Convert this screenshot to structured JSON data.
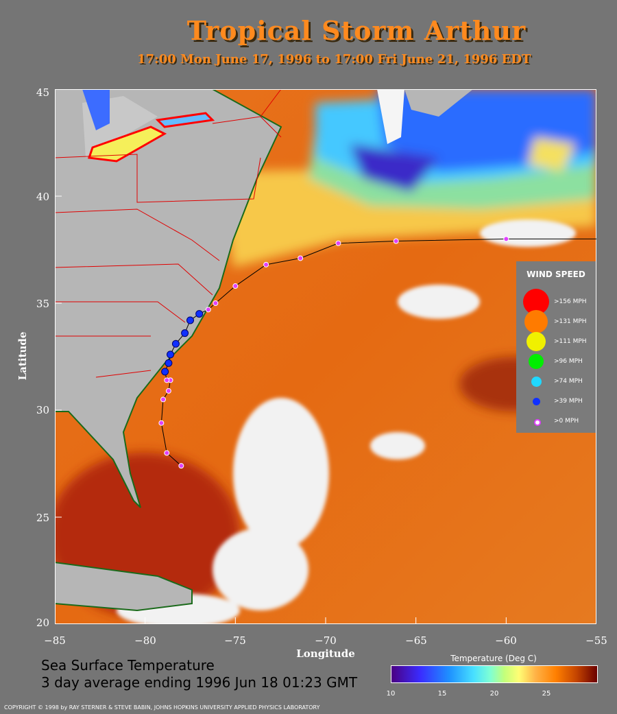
{
  "title": "Tropical Storm Arthur",
  "subtitle": "17:00 Mon June 17, 1996 to 17:00 Fri June 21, 1996  EDT",
  "axes": {
    "xlabel": "Longitude",
    "ylabel": "Latitude",
    "lat_ticks": [
      "45",
      "40",
      "35",
      "30",
      "25",
      "20"
    ],
    "lon_ticks": [
      "−85",
      "−80",
      "−75",
      "−70",
      "−65",
      "−60",
      "−55"
    ]
  },
  "legend": {
    "title": "WIND SPEED",
    "items": [
      {
        "label": ">156 MPH",
        "color": "#ff0000"
      },
      {
        "label": ">131 MPH",
        "color": "#ff7b00"
      },
      {
        "label": ">111 MPH",
        "color": "#f0f000"
      },
      {
        "label": ">96 MPH",
        "color": "#00ee00"
      },
      {
        "label": ">74 MPH",
        "color": "#20d8ff"
      },
      {
        "label": ">39 MPH",
        "color": "#1030ff"
      },
      {
        "label": ">0 MPH",
        "color": "#e040ff"
      }
    ]
  },
  "caption": {
    "line1": "Sea Surface Temperature",
    "line2": "3 day average ending 1996 Jun 18 01:23 GMT"
  },
  "colorbar": {
    "title": "Temperature (Deg C)",
    "labels": [
      "10",
      "15",
      "20",
      "25"
    ]
  },
  "copyright": "COPYRIGHT © 1998 by RAY STERNER & STEVE BABIN, JOHNS HOPKINS UNIVERSITY APPLIED PHYSICS LABORATORY",
  "track": {
    "category_colors": {
      "tropical_storm": "#1030ff",
      "depression": "#e040ff"
    },
    "points": [
      {
        "lon": -78.0,
        "lat": 27.4,
        "cat": "depression"
      },
      {
        "lon": -78.8,
        "lat": 28.0,
        "cat": "depression"
      },
      {
        "lon": -79.1,
        "lat": 29.4,
        "cat": "depression"
      },
      {
        "lon": -79.0,
        "lat": 30.5,
        "cat": "depression"
      },
      {
        "lon": -78.7,
        "lat": 30.9,
        "cat": "depression"
      },
      {
        "lon": -78.6,
        "lat": 31.4,
        "cat": "depression"
      },
      {
        "lon": -78.8,
        "lat": 31.4,
        "cat": "depression"
      },
      {
        "lon": -78.9,
        "lat": 31.8,
        "cat": "tropical_storm"
      },
      {
        "lon": -78.7,
        "lat": 32.2,
        "cat": "tropical_storm"
      },
      {
        "lon": -78.6,
        "lat": 32.6,
        "cat": "tropical_storm"
      },
      {
        "lon": -78.3,
        "lat": 33.1,
        "cat": "tropical_storm"
      },
      {
        "lon": -77.8,
        "lat": 33.6,
        "cat": "tropical_storm"
      },
      {
        "lon": -77.5,
        "lat": 34.2,
        "cat": "tropical_storm"
      },
      {
        "lon": -77.0,
        "lat": 34.5,
        "cat": "tropical_storm"
      },
      {
        "lon": -76.5,
        "lat": 34.7,
        "cat": "depression"
      },
      {
        "lon": -76.1,
        "lat": 35.0,
        "cat": "depression"
      },
      {
        "lon": -75.0,
        "lat": 35.8,
        "cat": "depression"
      },
      {
        "lon": -73.3,
        "lat": 36.8,
        "cat": "depression"
      },
      {
        "lon": -71.4,
        "lat": 37.1,
        "cat": "depression"
      },
      {
        "lon": -69.3,
        "lat": 37.8,
        "cat": "depression"
      },
      {
        "lon": -66.1,
        "lat": 37.9,
        "cat": "depression"
      },
      {
        "lon": -60.0,
        "lat": 38.0,
        "cat": "depression"
      },
      {
        "lon": -55.0,
        "lat": 38.0,
        "cat": "end"
      }
    ]
  }
}
